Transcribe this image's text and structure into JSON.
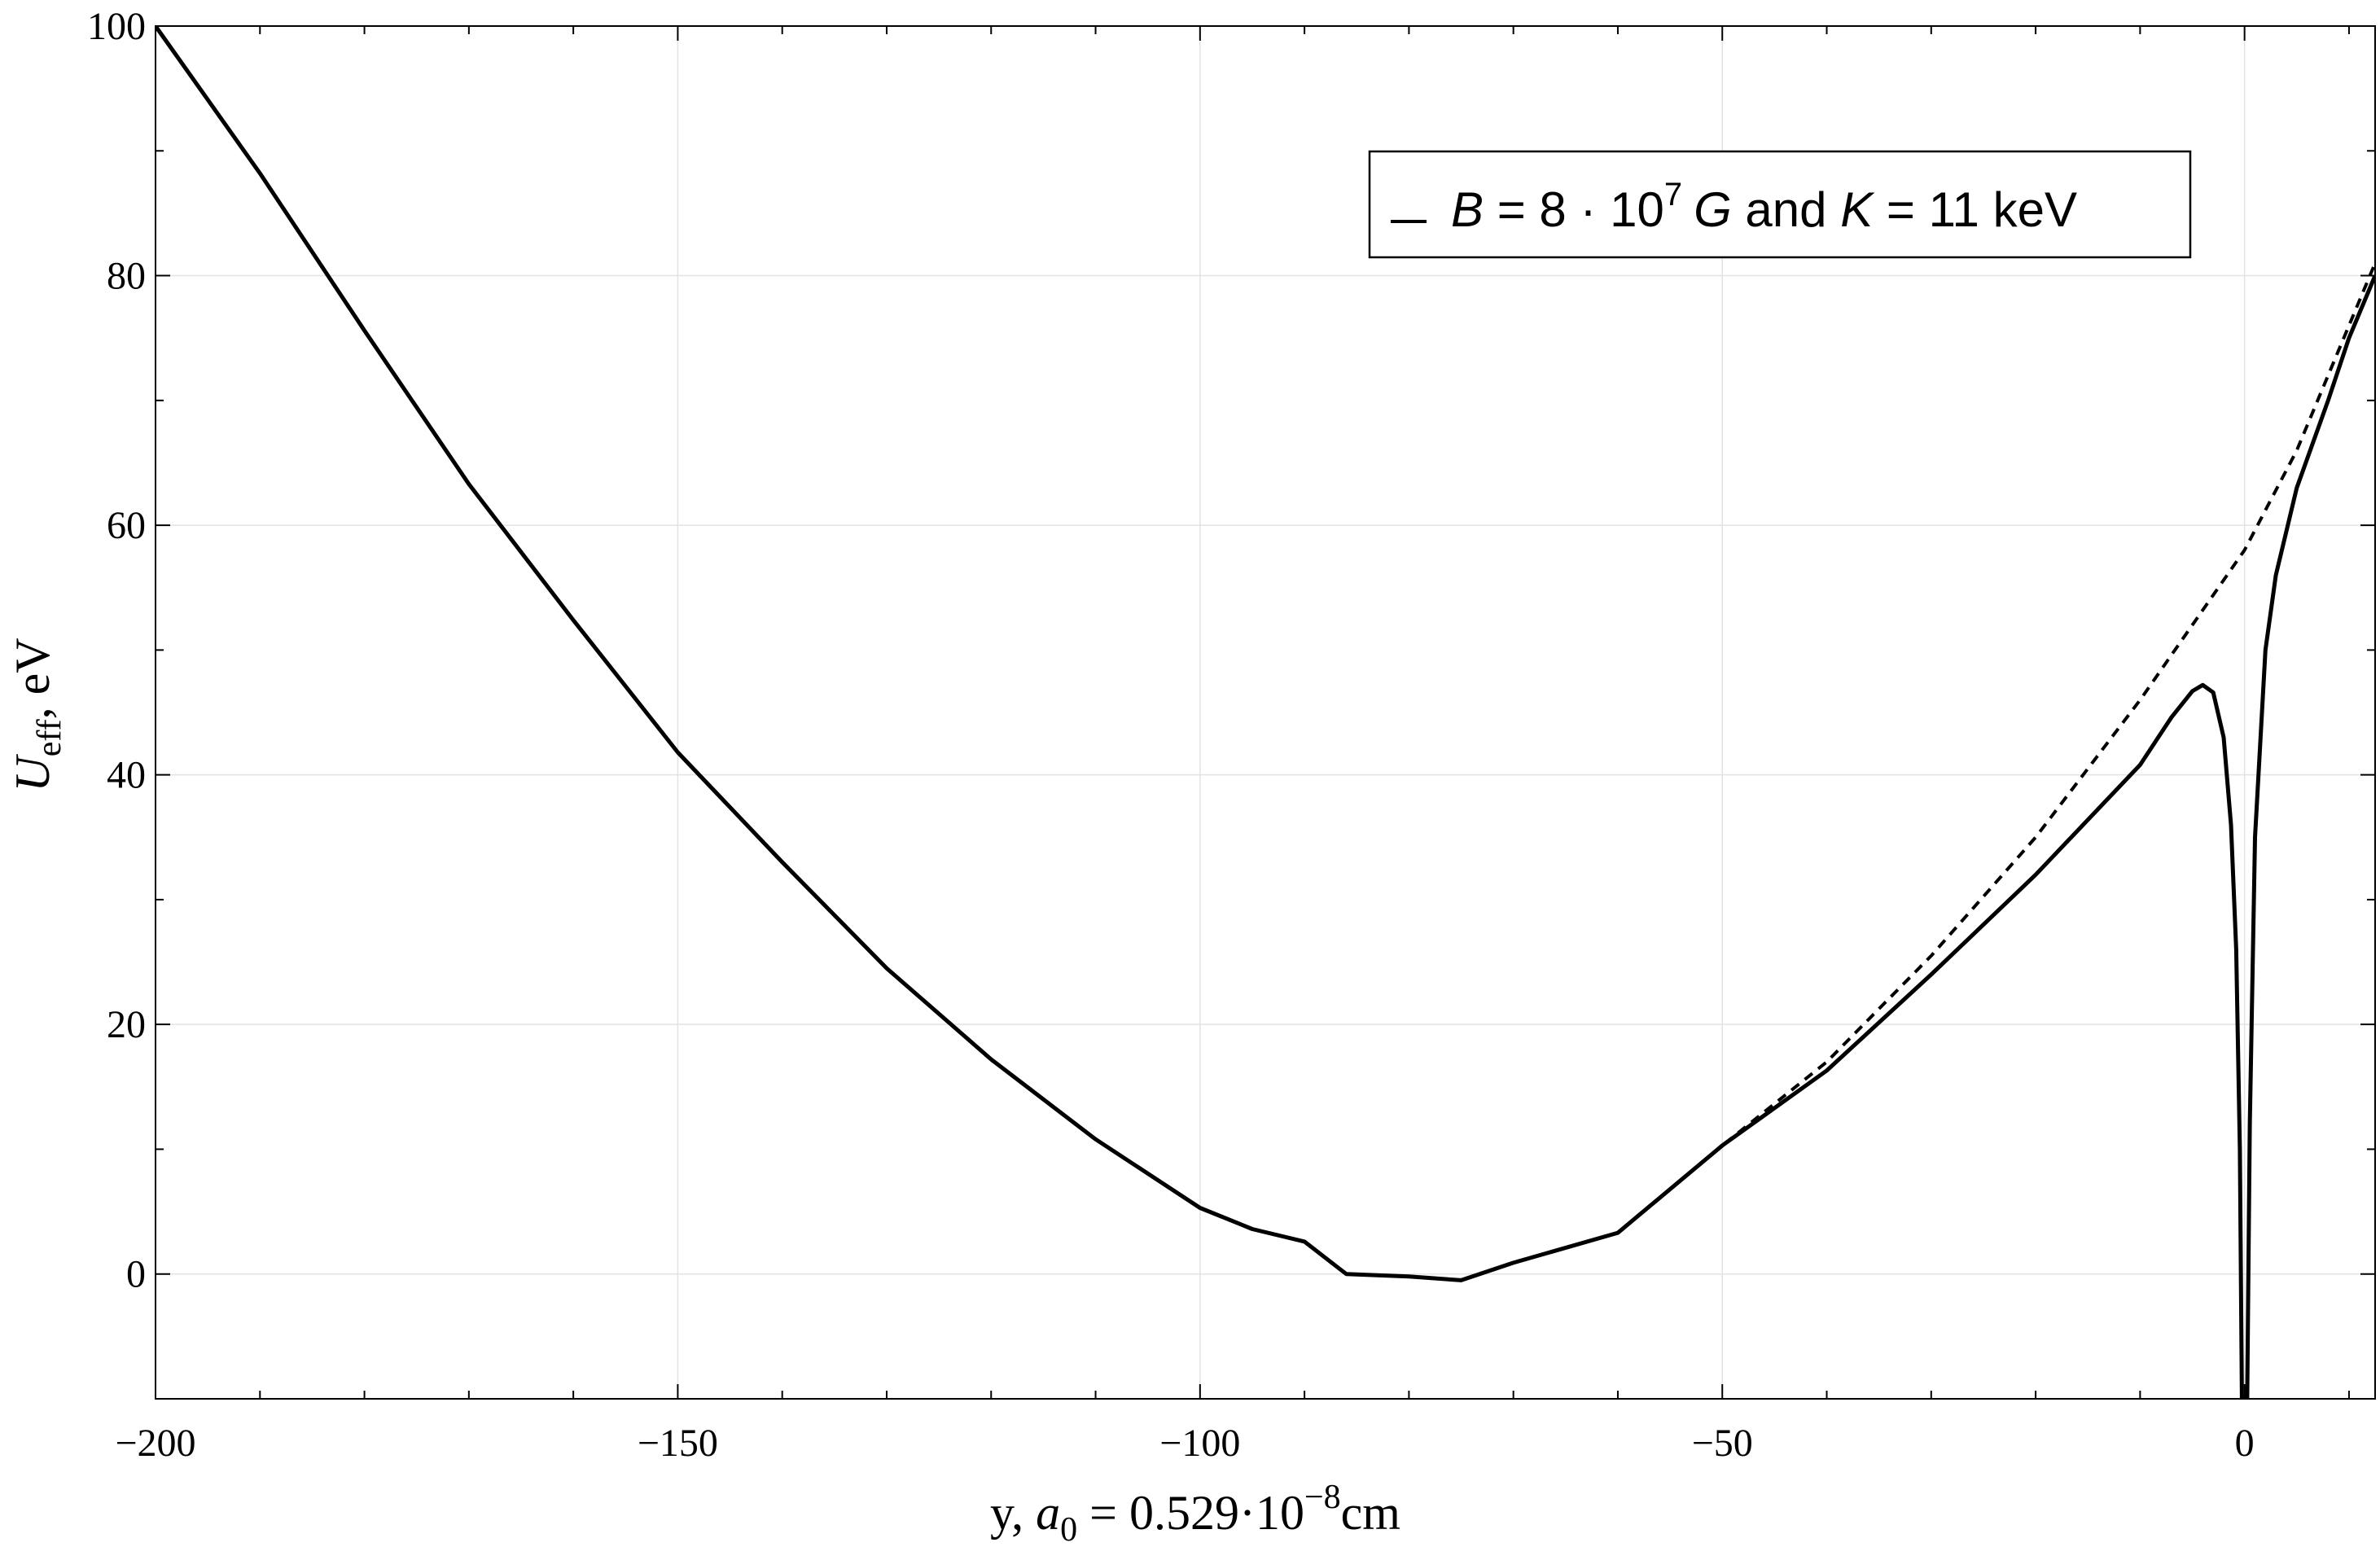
{
  "chart_data": {
    "type": "line",
    "xlabel": {
      "prefix": "y, ",
      "var": "a",
      "sub": "0",
      "middle": " = 0.529·10",
      "sup": "−8",
      "suffix": "cm"
    },
    "ylabel": {
      "var": "U",
      "sub": "eff",
      "suffix": ", eV"
    },
    "xlim": [
      -200,
      12.5
    ],
    "ylim": [
      -10,
      100
    ],
    "x_ticks": [
      -200,
      -150,
      -100,
      -50,
      0
    ],
    "x_tick_labels": [
      "−200",
      "−150",
      "−100",
      "−50",
      "0"
    ],
    "x_minor_step": 10,
    "y_ticks": [
      0,
      20,
      40,
      60,
      80,
      100
    ],
    "y_tick_labels": [
      "0",
      "20",
      "40",
      "60",
      "80",
      "100"
    ],
    "y_minor_step": 10,
    "grid": true,
    "legend": {
      "placement": "top-right",
      "parts": {
        "b": "B",
        "eq1": " = 8 · 10",
        "exp": "7",
        "g": "G",
        "and": " and ",
        "k": "K",
        "eq2": " = 11 keV"
      }
    },
    "series": [
      {
        "style": "solid",
        "color": "#000000",
        "points": [
          [
            -200,
            100
          ],
          [
            -190,
            88.2
          ],
          [
            -180,
            75.6
          ],
          [
            -170,
            63.3
          ],
          [
            -160,
            52.4
          ],
          [
            -150,
            41.8
          ],
          [
            -140,
            33.0
          ],
          [
            -130,
            24.5
          ],
          [
            -120,
            17.2
          ],
          [
            -110,
            10.8
          ],
          [
            -100,
            5.3
          ],
          [
            -95,
            3.6
          ],
          [
            -90,
            2.6
          ],
          [
            -86,
            0.0
          ],
          [
            -80,
            -0.2
          ],
          [
            -75,
            -0.5
          ],
          [
            -70,
            0.9
          ],
          [
            -60,
            3.3
          ],
          [
            -50,
            10.3
          ],
          [
            -40,
            16.3
          ],
          [
            -30,
            24.0
          ],
          [
            -20,
            32.0
          ],
          [
            -10,
            40.8
          ],
          [
            -7,
            44.6
          ],
          [
            -5,
            46.7
          ],
          [
            -4,
            47.2
          ],
          [
            -3,
            46.6
          ],
          [
            -2,
            43.0
          ],
          [
            -1.3,
            36.0
          ],
          [
            -0.8,
            26.0
          ],
          [
            -0.45,
            10.0
          ],
          [
            -0.25,
            -10
          ],
          null,
          [
            0.25,
            -10
          ],
          [
            0.5,
            12.0
          ],
          [
            1,
            35.0
          ],
          [
            2,
            50.0
          ],
          [
            3,
            56.0
          ],
          [
            5,
            63.0
          ],
          [
            8,
            70.0
          ],
          [
            10,
            75.0
          ],
          [
            12.5,
            80.0
          ]
        ]
      },
      {
        "style": "dashed",
        "color": "#000000",
        "points": [
          [
            -200,
            100
          ],
          [
            -190,
            88.2
          ],
          [
            -180,
            75.6
          ],
          [
            -170,
            63.3
          ],
          [
            -160,
            52.4
          ],
          [
            -150,
            41.8
          ],
          [
            -140,
            33.0
          ],
          [
            -130,
            24.5
          ],
          [
            -120,
            17.2
          ],
          [
            -110,
            10.8
          ],
          [
            -100,
            5.3
          ],
          [
            -95,
            3.6
          ],
          [
            -90,
            2.6
          ],
          [
            -86,
            0.0
          ],
          [
            -80,
            -0.2
          ],
          [
            -75,
            -0.5
          ],
          [
            -70,
            0.9
          ],
          [
            -60,
            3.3
          ],
          [
            -50,
            10.3
          ],
          [
            -40,
            17.0
          ],
          [
            -30,
            25.5
          ],
          [
            -20,
            35.0
          ],
          [
            -10,
            46.0
          ],
          [
            -5,
            52.0
          ],
          [
            0,
            58.0
          ],
          [
            5,
            66.0
          ],
          [
            10,
            76.0
          ],
          [
            12.5,
            81.0
          ]
        ]
      }
    ]
  }
}
